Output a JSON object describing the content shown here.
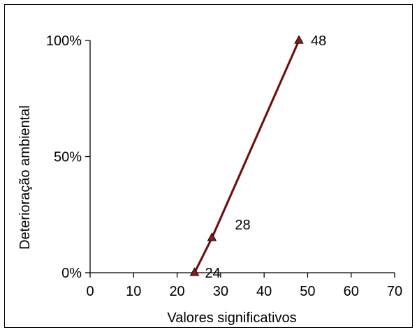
{
  "chart_data": {
    "type": "line",
    "title": "",
    "xlabel": "Valores significativos",
    "ylabel": "Deterioração ambiental",
    "xlim": [
      0,
      70
    ],
    "ylim": [
      0,
      100
    ],
    "x_ticks": [
      0,
      10,
      20,
      30,
      40,
      50,
      60,
      70
    ],
    "y_ticks": [
      0,
      50,
      100
    ],
    "y_tick_labels": [
      "0%",
      "50%",
      "100%"
    ],
    "grid": false,
    "legend": "none",
    "series": [
      {
        "color": "#8b1a1a",
        "marker": "triangle",
        "marker_color": "#8b1a1a",
        "points": [
          {
            "x": 24,
            "y": 0,
            "label": "24"
          },
          {
            "x": 28,
            "y": 15,
            "label": "28"
          },
          {
            "x": 48,
            "y": 100,
            "label": "48"
          }
        ]
      }
    ]
  }
}
